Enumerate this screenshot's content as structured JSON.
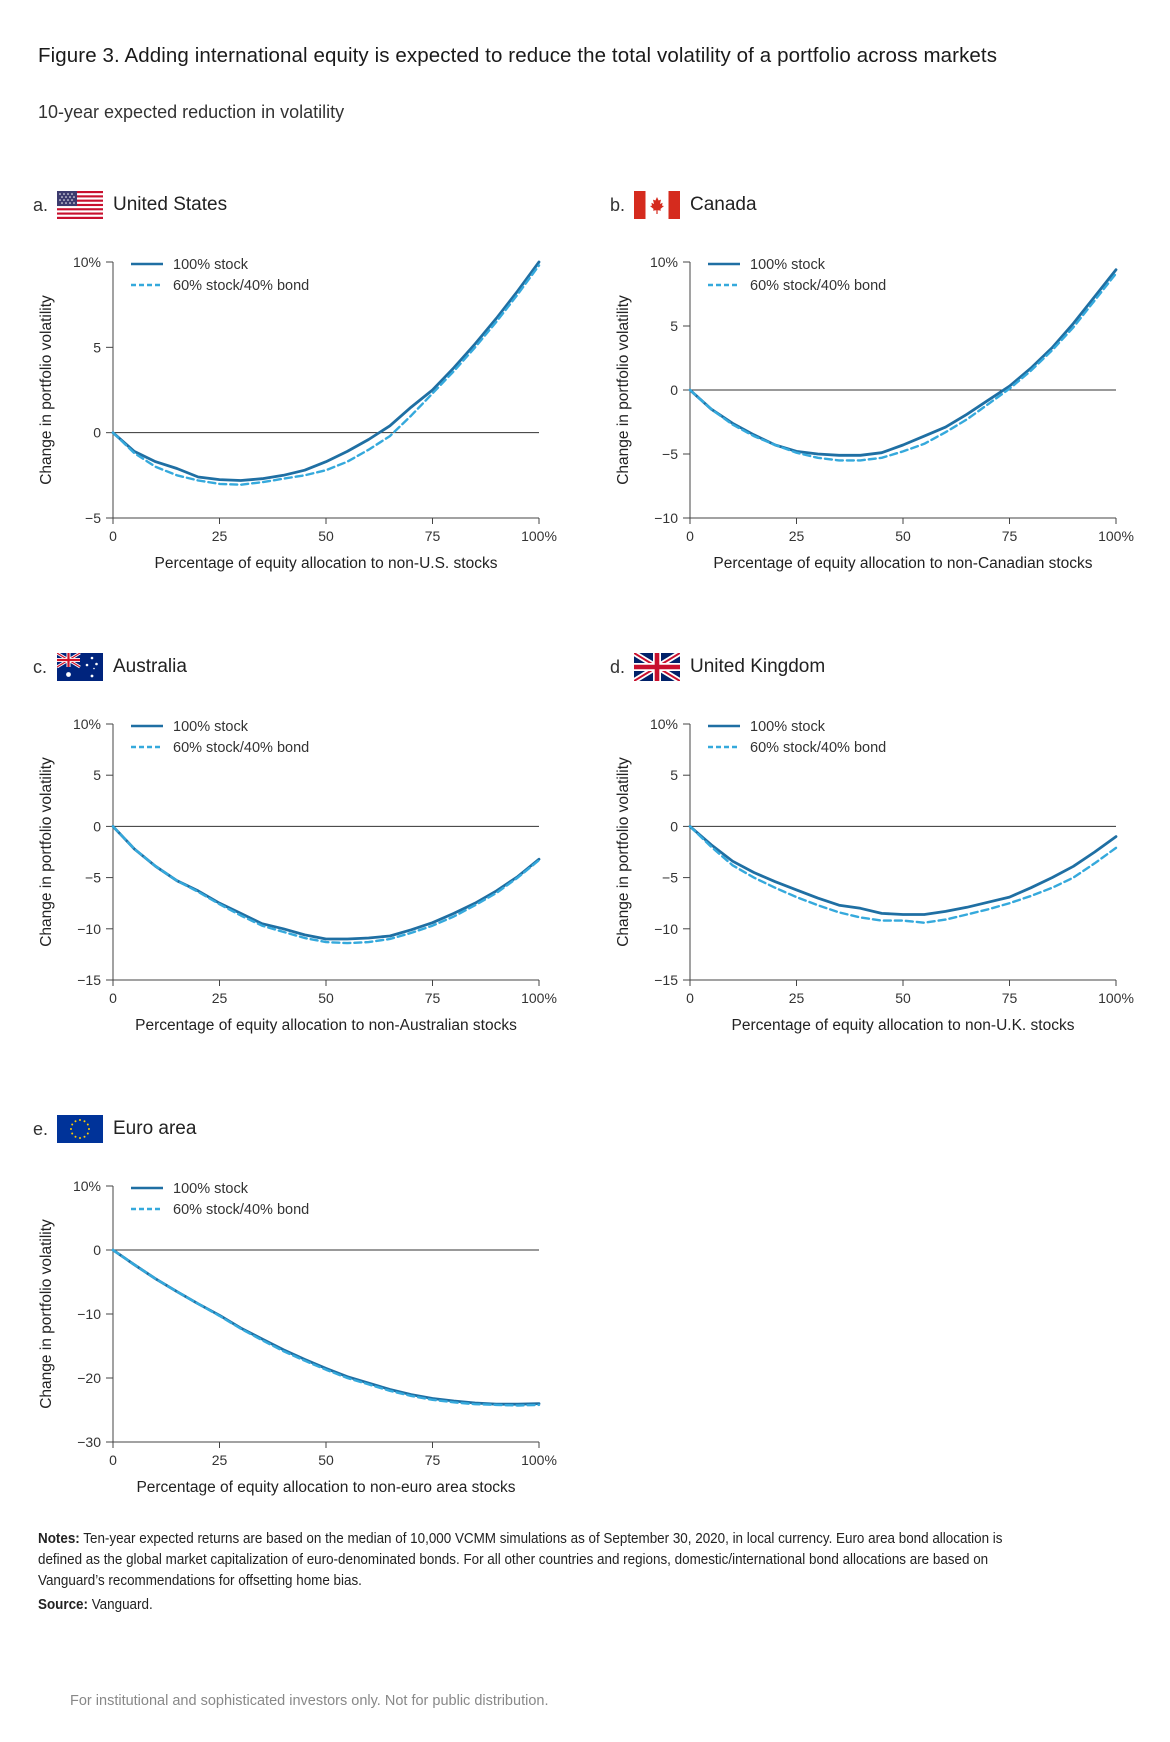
{
  "title": "Figure 3. Adding international equity is expected to reduce the total volatility of a portfolio across markets",
  "subtitle": "10-year expected reduction in volatility",
  "colors": {
    "stock": "#1f6fa3",
    "bond": "#35a9dc",
    "axis": "#444444"
  },
  "panels": [
    {
      "letter": "a.",
      "name": "United States",
      "flag": "us-flag-icon"
    },
    {
      "letter": "b.",
      "name": "Canada",
      "flag": "canada-flag-icon"
    },
    {
      "letter": "c.",
      "name": "Australia",
      "flag": "australia-flag-icon"
    },
    {
      "letter": "d.",
      "name": "United Kingdom",
      "flag": "uk-flag-icon"
    },
    {
      "letter": "e.",
      "name": "Euro area",
      "flag": "eu-flag-icon"
    }
  ],
  "chart_data": [
    {
      "type": "line",
      "title": "United States",
      "xlabel": "Percentage of equity allocation to non-U.S. stocks",
      "ylabel": "Change in portfolio volatility",
      "xlim": [
        0,
        100
      ],
      "ylim": [
        -5,
        10
      ],
      "xticks": [
        "0",
        "25",
        "50",
        "75",
        "100%"
      ],
      "yticks": [
        {
          "v": 10,
          "label": "10%"
        },
        {
          "v": 5,
          "label": "5"
        },
        {
          "v": 0,
          "label": "0"
        },
        {
          "v": -5,
          "label": "−5"
        }
      ],
      "x": [
        0,
        5,
        10,
        15,
        20,
        25,
        30,
        35,
        40,
        45,
        50,
        55,
        60,
        65,
        70,
        75,
        80,
        85,
        90,
        95,
        100
      ],
      "series": [
        {
          "name": "100% stock",
          "style": "solid",
          "values": [
            0,
            -1.1,
            -1.7,
            -2.1,
            -2.6,
            -2.75,
            -2.8,
            -2.7,
            -2.5,
            -2.2,
            -1.7,
            -1.1,
            -0.4,
            0.4,
            1.5,
            2.5,
            3.8,
            5.2,
            6.7,
            8.3,
            10.0
          ]
        },
        {
          "name": "60% stock/40% bond",
          "style": "dashed",
          "values": [
            0,
            -1.2,
            -2.0,
            -2.5,
            -2.8,
            -3.0,
            -3.05,
            -2.9,
            -2.7,
            -2.5,
            -2.2,
            -1.7,
            -1.0,
            -0.2,
            1.0,
            2.3,
            3.6,
            5.0,
            6.5,
            8.1,
            9.8
          ]
        }
      ]
    },
    {
      "type": "line",
      "title": "Canada",
      "xlabel": "Percentage of equity allocation to non-Canadian stocks",
      "ylabel": "Change in portfolio volatility",
      "xlim": [
        0,
        100
      ],
      "ylim": [
        -10,
        10
      ],
      "xticks": [
        "0",
        "25",
        "50",
        "75",
        "100%"
      ],
      "yticks": [
        {
          "v": 10,
          "label": "10%"
        },
        {
          "v": 5,
          "label": "5"
        },
        {
          "v": 0,
          "label": "0"
        },
        {
          "v": -5,
          "label": "−5"
        },
        {
          "v": -10,
          "label": "−10"
        }
      ],
      "x": [
        0,
        5,
        10,
        15,
        20,
        25,
        30,
        35,
        40,
        45,
        50,
        55,
        60,
        65,
        70,
        75,
        80,
        85,
        90,
        95,
        100
      ],
      "series": [
        {
          "name": "100% stock",
          "style": "solid",
          "values": [
            0,
            -1.5,
            -2.6,
            -3.5,
            -4.3,
            -4.8,
            -5.0,
            -5.1,
            -5.1,
            -4.9,
            -4.3,
            -3.6,
            -2.9,
            -1.9,
            -0.8,
            0.3,
            1.7,
            3.3,
            5.2,
            7.3,
            9.4
          ]
        },
        {
          "name": "60% stock/40% bond",
          "style": "dashed",
          "values": [
            0,
            -1.5,
            -2.7,
            -3.6,
            -4.3,
            -4.9,
            -5.3,
            -5.5,
            -5.5,
            -5.3,
            -4.8,
            -4.2,
            -3.3,
            -2.3,
            -1.1,
            0.1,
            1.5,
            3.1,
            4.9,
            7.0,
            9.1
          ]
        }
      ]
    },
    {
      "type": "line",
      "title": "Australia",
      "xlabel": "Percentage of equity allocation to non-Australian stocks",
      "ylabel": "Change in portfolio volatility",
      "xlim": [
        0,
        100
      ],
      "ylim": [
        -15,
        10
      ],
      "xticks": [
        "0",
        "25",
        "50",
        "75",
        "100%"
      ],
      "yticks": [
        {
          "v": 10,
          "label": "10%"
        },
        {
          "v": 5,
          "label": "5"
        },
        {
          "v": 0,
          "label": "0"
        },
        {
          "v": -5,
          "label": "−5"
        },
        {
          "v": -10,
          "label": "−10"
        },
        {
          "v": -15,
          "label": "−15"
        }
      ],
      "x": [
        0,
        5,
        10,
        15,
        20,
        25,
        30,
        35,
        40,
        45,
        50,
        55,
        60,
        65,
        70,
        75,
        80,
        85,
        90,
        95,
        100
      ],
      "series": [
        {
          "name": "100% stock",
          "style": "solid",
          "values": [
            0,
            -2.2,
            -3.9,
            -5.3,
            -6.3,
            -7.5,
            -8.5,
            -9.5,
            -10.0,
            -10.6,
            -11.0,
            -11.0,
            -10.9,
            -10.7,
            -10.1,
            -9.4,
            -8.5,
            -7.5,
            -6.3,
            -4.9,
            -3.2
          ]
        },
        {
          "name": "60% stock/40% bond",
          "style": "dashed",
          "values": [
            0,
            -2.2,
            -3.9,
            -5.3,
            -6.4,
            -7.6,
            -8.7,
            -9.7,
            -10.3,
            -10.9,
            -11.3,
            -11.4,
            -11.3,
            -11.0,
            -10.4,
            -9.7,
            -8.8,
            -7.7,
            -6.5,
            -5.0,
            -3.3
          ]
        }
      ]
    },
    {
      "type": "line",
      "title": "United Kingdom",
      "xlabel": "Percentage of equity allocation to non-U.K. stocks",
      "ylabel": "Change in portfolio volatility",
      "xlim": [
        0,
        100
      ],
      "ylim": [
        -15,
        10
      ],
      "xticks": [
        "0",
        "25",
        "50",
        "75",
        "100%"
      ],
      "yticks": [
        {
          "v": 10,
          "label": "10%"
        },
        {
          "v": 5,
          "label": "5"
        },
        {
          "v": 0,
          "label": "0"
        },
        {
          "v": -5,
          "label": "−5"
        },
        {
          "v": -10,
          "label": "−10"
        },
        {
          "v": -15,
          "label": "−15"
        }
      ],
      "x": [
        0,
        5,
        10,
        15,
        20,
        25,
        30,
        35,
        40,
        45,
        50,
        55,
        60,
        65,
        70,
        75,
        80,
        85,
        90,
        95,
        100
      ],
      "series": [
        {
          "name": "100% stock",
          "style": "solid",
          "values": [
            0,
            -1.8,
            -3.4,
            -4.5,
            -5.4,
            -6.2,
            -7.0,
            -7.7,
            -8.0,
            -8.5,
            -8.6,
            -8.6,
            -8.3,
            -7.9,
            -7.4,
            -6.9,
            -6.0,
            -5.0,
            -3.9,
            -2.5,
            -1.0
          ]
        },
        {
          "name": "60% stock/40% bond",
          "style": "dashed",
          "values": [
            0,
            -2.0,
            -3.8,
            -5.0,
            -6.0,
            -6.9,
            -7.7,
            -8.4,
            -8.9,
            -9.2,
            -9.2,
            -9.4,
            -9.1,
            -8.6,
            -8.1,
            -7.5,
            -6.8,
            -6.0,
            -5.0,
            -3.6,
            -2.1
          ]
        }
      ]
    },
    {
      "type": "line",
      "title": "Euro area",
      "xlabel": "Percentage of equity allocation to non-euro area stocks",
      "ylabel": "Change in portfolio volatility",
      "xlim": [
        0,
        100
      ],
      "ylim": [
        -30,
        10
      ],
      "xticks": [
        "0",
        "25",
        "50",
        "75",
        "100%"
      ],
      "yticks": [
        {
          "v": 10,
          "label": "10%"
        },
        {
          "v": 0,
          "label": "0"
        },
        {
          "v": -10,
          "label": "−10"
        },
        {
          "v": -20,
          "label": "−20"
        },
        {
          "v": -30,
          "label": "−30"
        }
      ],
      "x": [
        0,
        5,
        10,
        15,
        20,
        25,
        30,
        35,
        40,
        45,
        50,
        55,
        60,
        65,
        70,
        75,
        80,
        85,
        90,
        95,
        100
      ],
      "series": [
        {
          "name": "100% stock",
          "style": "solid",
          "values": [
            0,
            -2.3,
            -4.5,
            -6.5,
            -8.4,
            -10.2,
            -12.2,
            -13.9,
            -15.6,
            -17.1,
            -18.5,
            -19.8,
            -20.8,
            -21.8,
            -22.6,
            -23.2,
            -23.6,
            -23.9,
            -24.1,
            -24.1,
            -24.0
          ]
        },
        {
          "name": "60% stock/40% bond",
          "style": "dashed",
          "values": [
            0,
            -2.3,
            -4.5,
            -6.5,
            -8.4,
            -10.3,
            -12.3,
            -14.1,
            -15.8,
            -17.3,
            -18.7,
            -20.0,
            -21.0,
            -22.0,
            -22.8,
            -23.4,
            -23.8,
            -24.1,
            -24.2,
            -24.3,
            -24.2
          ]
        }
      ]
    }
  ],
  "notes": {
    "label": "Notes:",
    "text": " Ten-year expected returns are based on the median of 10,000 VCMM simulations as of September 30, 2020, in local currency. Euro area bond allocation is defined as the global market capitalization of euro-denominated bonds. For all other countries and regions, domestic/international bond allocations are based on Vanguard’s recommendations for offsetting home bias."
  },
  "source": {
    "label": "Source:",
    "text": " Vanguard."
  },
  "footer": "For institutional and sophisticated investors only. Not for public distribution."
}
